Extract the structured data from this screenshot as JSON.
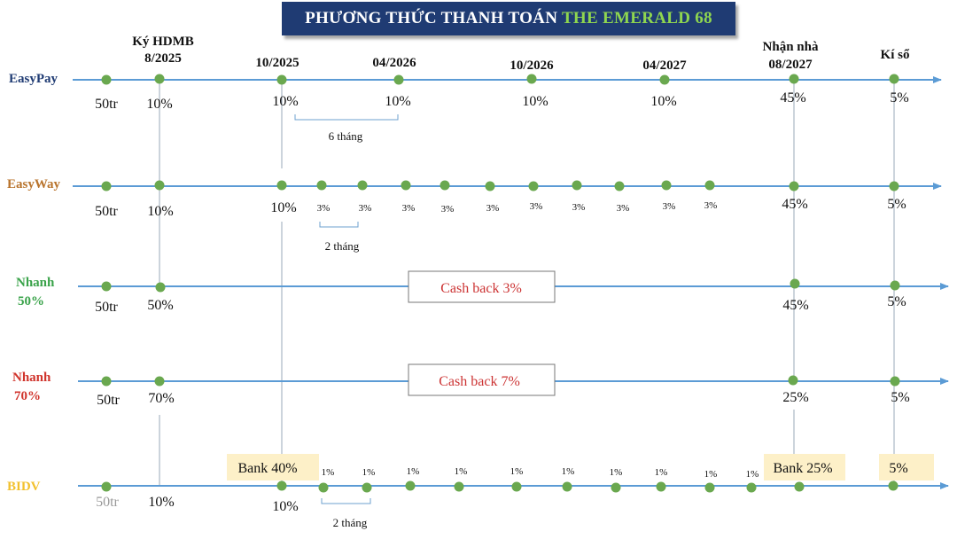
{
  "title": {
    "prefix": "PHƯƠNG THỨC THANH TOÁN",
    "accent": "THE EMERALD 68",
    "accent_color": "#8fd64f",
    "bg_color": "#1f3b73"
  },
  "milestones": [
    "Ký HDMB 8/2025",
    "10/2025",
    "04/2026",
    "10/2026",
    "04/2027",
    "Nhận nhà 08/2027",
    "Kí sổ"
  ],
  "plans": [
    {
      "name": "EasyPay",
      "color": "#1f3b73",
      "deposit": "50tr",
      "sign": "10%",
      "handover": "45%",
      "title_deed": "5%",
      "installments": [
        "10%",
        "10%",
        "10%",
        "10%"
      ],
      "interval_note": "6 tháng"
    },
    {
      "name": "EasyWay",
      "color": "#b8732b",
      "deposit": "50tr",
      "sign": "10%",
      "handover": "45%",
      "title_deed": "5%",
      "first": "10%",
      "installments": [
        "3%",
        "3%",
        "3%",
        "3%",
        "3%",
        "3%",
        "3%",
        "3%",
        "3%",
        "3%"
      ],
      "interval_note": "2 tháng"
    },
    {
      "name": "Nhanh 50%",
      "color": "#3aa34a",
      "deposit": "50tr",
      "sign": "50%",
      "handover": "45%",
      "title_deed": "5%",
      "cashback": "Cash back 3%"
    },
    {
      "name": "Nhanh 70%",
      "color": "#d0342c",
      "deposit": "50tr",
      "sign": "70%",
      "handover": "25%",
      "title_deed": "5%",
      "cashback": "Cash back 7%"
    },
    {
      "name": "BIDV",
      "color": "#f2c12e",
      "deposit": "50tr",
      "sign": "10%",
      "title_deed": "5%",
      "first": "10%",
      "bank_first": "Bank 40%",
      "bank_handover": "Bank 25%",
      "installments": [
        "1%",
        "1%",
        "1%",
        "1%",
        "1%",
        "1%",
        "1%",
        "1%",
        "1%",
        "1%"
      ],
      "interval_note": "2 tháng"
    }
  ],
  "colors": {
    "line": "#5b9bd5",
    "dot": "#6aa84f",
    "cashback_text": "#cc3333",
    "bank_bg": "#fdf0c8"
  }
}
